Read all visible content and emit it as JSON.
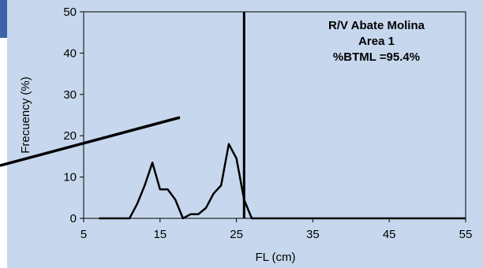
{
  "chart_data": {
    "type": "line",
    "annotation_lines": [
      "R/V Abate Molina",
      "Area 1",
      "%BTML =95.4%"
    ],
    "xlabel": "FL (cm)",
    "ylabel": "Frecuency (%)",
    "xlim": [
      5,
      55
    ],
    "ylim": [
      0,
      50
    ],
    "x_ticks": [
      "5",
      "15",
      "25",
      "35",
      "45",
      "55"
    ],
    "y_ticks": [
      "0",
      "10",
      "20",
      "30",
      "40",
      "50"
    ],
    "x_tick_values": [
      5,
      15,
      25,
      35,
      45,
      55
    ],
    "y_tick_values": [
      0,
      10,
      20,
      30,
      40,
      50
    ],
    "btml_vertical_line_x": 26,
    "series": [
      {
        "x": [
          7,
          8,
          9,
          10,
          11,
          12,
          13,
          14,
          15,
          16,
          17,
          18,
          19,
          20,
          21,
          22,
          23,
          24,
          25,
          26,
          27,
          28,
          29,
          30,
          35,
          40,
          45,
          50,
          55
        ],
        "values": [
          0,
          0,
          0,
          0,
          0,
          3.5,
          8,
          13.5,
          7,
          7,
          4.5,
          0,
          1,
          1,
          2.5,
          6,
          8,
          18,
          14.5,
          4.5,
          0,
          0,
          0,
          0,
          0,
          0,
          0,
          0,
          0
        ]
      }
    ],
    "grid": false,
    "colors": {
      "panel_background": "#c7d8ee",
      "corner_tab": "#3c63a8",
      "line": "#000000"
    }
  }
}
